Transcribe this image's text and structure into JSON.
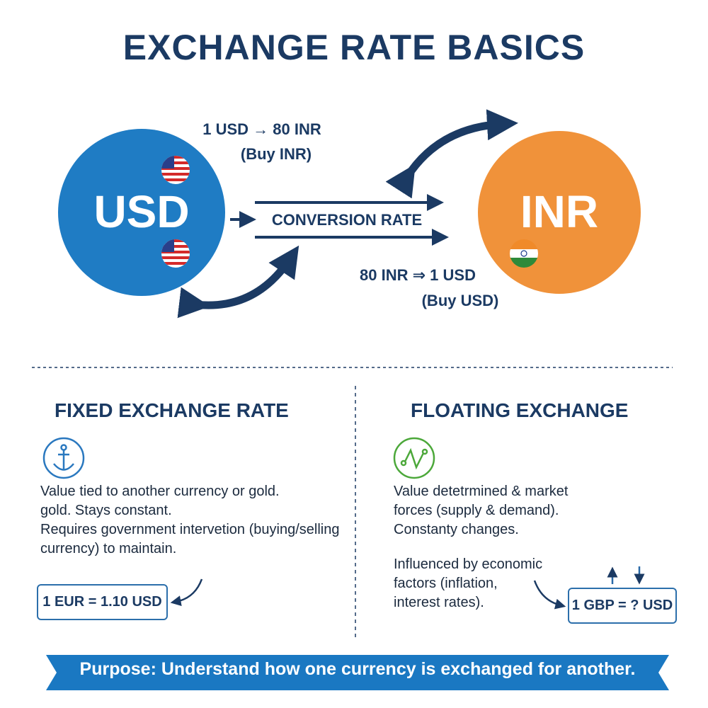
{
  "title": "EXCHANGE RATE BASICS",
  "colors": {
    "navy": "#1b3a63",
    "usd_circle": "#1f7cc4",
    "inr_circle": "#f0923a",
    "banner": "#1a78c2",
    "floating_icon": "#4ca83a"
  },
  "diagram": {
    "usd_label": "USD",
    "inr_label": "INR",
    "usd_to_inr": "1 USD → 80 INR",
    "usd_to_inr_note": "(Buy INR)",
    "center_label": "CONVERSION RATE",
    "inr_to_usd": "80 INR ⇒ 1 USD",
    "inr_to_usd_note": "(Buy USD)"
  },
  "fixed": {
    "heading": "FIXED EXCHANGE RATE",
    "icon": "anchor-icon",
    "lines": [
      "Value tied to another currency or gold.",
      "gold. Stays constant.",
      "Requires government intervetion (buying/selling",
      "currency) to maintain."
    ],
    "example": "1 EUR = 1.10 USD"
  },
  "floating": {
    "heading": "FLOATING EXCHANGE",
    "icon": "line-chart-icon",
    "lines": [
      "Value detetrmined & market",
      "forces (supply & demand).",
      "Constanty changes."
    ],
    "lines2": [
      "Influenced by economic",
      "factors (inflation,",
      "interest rates)."
    ],
    "example": "1 GBP = ? USD"
  },
  "banner": "Purpose: Understand how one currency is exchanged for another."
}
